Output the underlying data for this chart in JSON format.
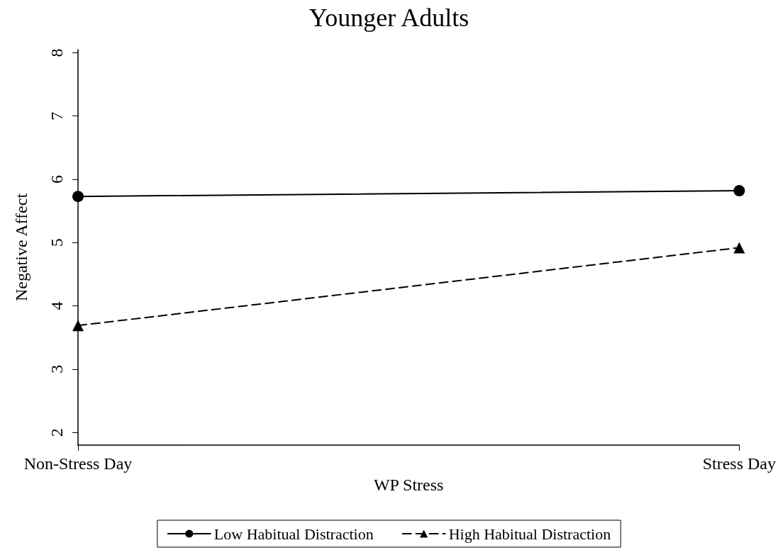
{
  "chart_data": {
    "type": "line",
    "title": "Younger Adults",
    "xlabel": "WP Stress",
    "ylabel": "Negative Affect",
    "categories": [
      "Non-Stress Day",
      "Stress Day"
    ],
    "series": [
      {
        "name": "Low Habitual Distraction",
        "color": "#000000",
        "values": [
          5.73,
          5.82
        ],
        "marker": "circle",
        "line_style": "solid"
      },
      {
        "name": "High Habitual Distraction",
        "color": "#000000",
        "values": [
          3.69,
          4.92
        ],
        "marker": "triangle",
        "line_style": "dashed"
      }
    ],
    "ylim": [
      1.8,
      8.05
    ],
    "yticks": [
      2,
      3,
      4,
      5,
      6,
      7,
      8
    ],
    "grid": false,
    "legend": "bottom"
  }
}
